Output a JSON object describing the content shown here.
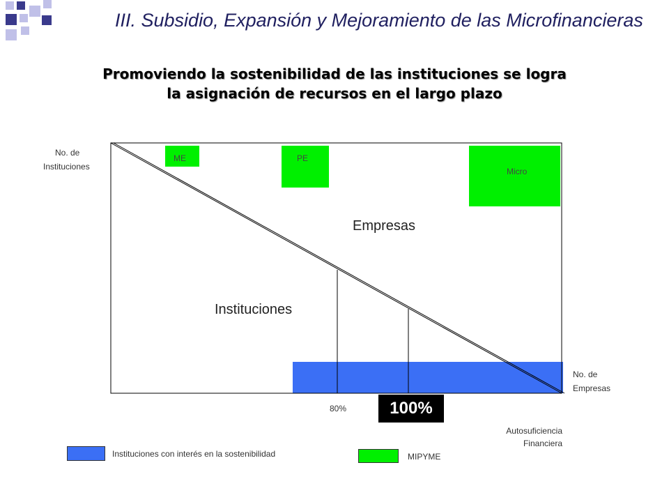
{
  "slide": {
    "title": "III. Subsidio, Expansión y Mejoramiento de las Microfinancieras",
    "subtitle_line1": "Promoviendo la sostenibilidad de las instituciones se logra",
    "subtitle_line2": "la asignación de recursos en el largo plazo"
  },
  "diagram": {
    "y_axis_label_line1": "No. de",
    "y_axis_label_line2": "Instituciones",
    "x_axis_label_line1": "No. de",
    "x_axis_label_line2": "Empresas",
    "region_upper": "Empresas",
    "region_lower": "Instituciones",
    "boxes": {
      "me": "ME",
      "pe": "PE",
      "micro": "Micro"
    },
    "marker_80": "80%",
    "marker_100": "100%",
    "axis_caption_line1": "Autosuficiencia",
    "axis_caption_line2": "Financiera"
  },
  "legend": {
    "blue_label": "Instituciones con interés en la sostenibilidad",
    "green_label": "MIPYME"
  },
  "colors": {
    "title": "#202060",
    "decor_dark": "#3a3a8c",
    "decor_light": "#c0c0e8",
    "green": "#00f000",
    "blue": "#3b6ff5"
  }
}
